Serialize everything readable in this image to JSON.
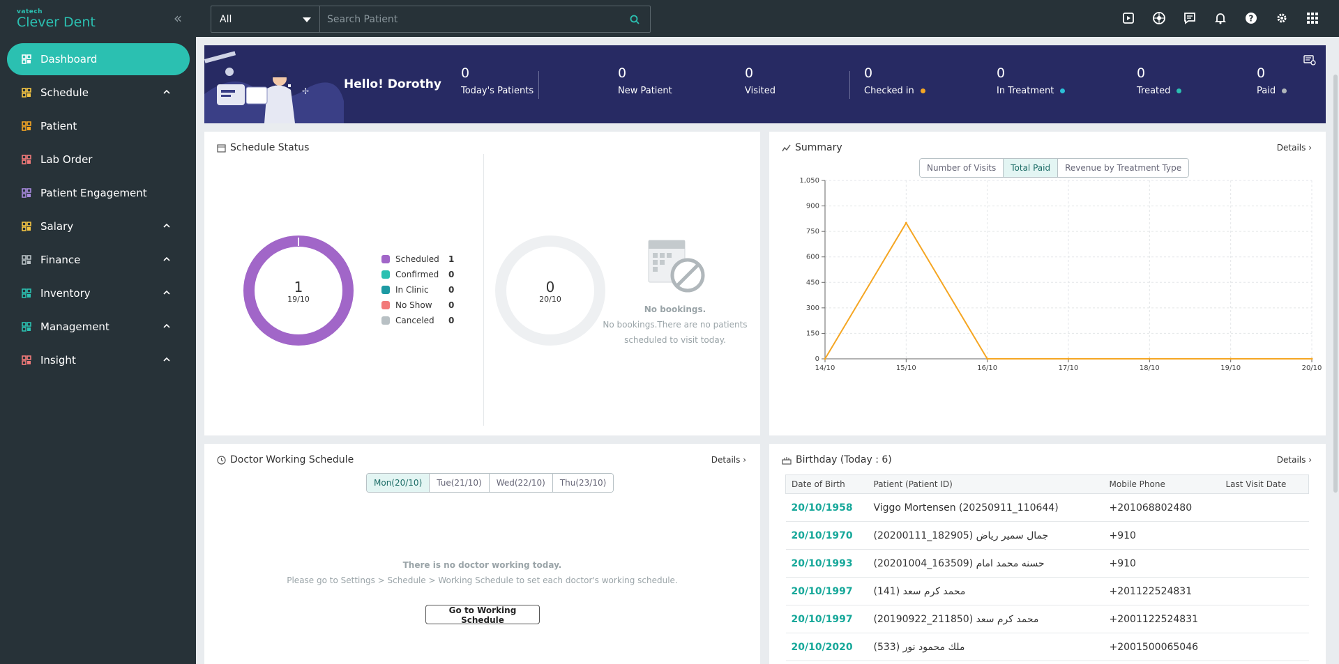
{
  "app": {
    "brand_small": "vatech",
    "brand": "Clever Dent"
  },
  "sidebar": {
    "items": [
      {
        "label": "Dashboard",
        "icon": "dashboard-icon",
        "active": true
      },
      {
        "label": "Schedule",
        "icon": "calendar-icon",
        "expandable": true
      },
      {
        "label": "Patient",
        "icon": "patients-icon"
      },
      {
        "label": "Lab Order",
        "icon": "tooth-icon"
      },
      {
        "label": "Patient Engagement",
        "icon": "engagement-icon"
      },
      {
        "label": "Salary",
        "icon": "wallet-icon",
        "expandable": true
      },
      {
        "label": "Finance",
        "icon": "finance-icon",
        "expandable": true
      },
      {
        "label": "Inventory",
        "icon": "inventory-icon",
        "expandable": true
      },
      {
        "label": "Management",
        "icon": "monitor-icon",
        "expandable": true
      },
      {
        "label": "Insight",
        "icon": "bar-chart-icon",
        "expandable": true
      }
    ]
  },
  "search": {
    "filter": "All",
    "placeholder": "Search Patient"
  },
  "banner": {
    "greeting": "Hello! Dorothy",
    "stats": [
      {
        "value": "0",
        "label": "Today's Patients"
      },
      {
        "value": "0",
        "label": "New Patient"
      },
      {
        "value": "0",
        "label": "Visited"
      },
      {
        "value": "0",
        "label": "Checked in",
        "dot": "#f5a623"
      },
      {
        "value": "0",
        "label": "In Treatment",
        "dot": "#2bc0d8"
      },
      {
        "value": "0",
        "label": "Treated",
        "dot": "#2bc0b1"
      },
      {
        "value": "0",
        "label": "Paid",
        "dot": "#b0b6ba"
      }
    ]
  },
  "schedule_status": {
    "title": "Schedule Status",
    "left": {
      "value": "1",
      "date": "19/10"
    },
    "right": {
      "value": "0",
      "date": "20/10"
    },
    "legend": [
      {
        "label": "Scheduled",
        "value": "1",
        "color": "#a166c8"
      },
      {
        "label": "Confirmed",
        "value": "0",
        "color": "#2bc0b1"
      },
      {
        "label": "In Clinic",
        "value": "0",
        "color": "#1d9aa3"
      },
      {
        "label": "No Show",
        "value": "0",
        "color": "#f27a7a"
      },
      {
        "label": "Canceled",
        "value": "0",
        "color": "#b8c0c4"
      }
    ],
    "empty_title": "No bookings.",
    "empty_text_1": "No bookings.There are no patients",
    "empty_text_2": "scheduled to visit today."
  },
  "summary": {
    "title": "Summary",
    "details": "Details",
    "tabs": [
      {
        "label": "Number of Visits",
        "active": false
      },
      {
        "label": "Total Paid",
        "active": true
      },
      {
        "label": "Revenue by Treatment Type",
        "active": false
      }
    ]
  },
  "chart_data": {
    "type": "line",
    "x": [
      "14/10",
      "15/10",
      "16/10",
      "17/10",
      "18/10",
      "19/10",
      "20/10"
    ],
    "series": [
      {
        "values": [
          0,
          800,
          0,
          0,
          0,
          0,
          0
        ],
        "color": "#f5a623"
      }
    ],
    "yticks": [
      "0",
      "150",
      "300",
      "450",
      "600",
      "750",
      "900",
      "1,050"
    ],
    "ylim": [
      0,
      1050
    ],
    "grid": true
  },
  "doctor_schedule": {
    "title": "Doctor Working Schedule",
    "details": "Details",
    "tabs": [
      {
        "label": "Mon(20/10)",
        "active": true
      },
      {
        "label": "Tue(21/10)",
        "active": false
      },
      {
        "label": "Wed(22/10)",
        "active": false
      },
      {
        "label": "Thu(23/10)",
        "active": false
      }
    ],
    "empty_title": "There is no doctor working today.",
    "empty_text": "Please go to Settings > Schedule > Working Schedule to set each doctor's working schedule.",
    "button": "Go to Working Schedule"
  },
  "birthday": {
    "title": "Birthday (Today : 6)",
    "details": "Details",
    "columns": [
      "Date of Birth",
      "Patient (Patient ID)",
      "Mobile Phone",
      "Last Visit Date"
    ],
    "rows": [
      {
        "dob": "20/10/1958",
        "patient": "Viggo Mortensen (20250911_110644)",
        "phone": "+201068802480",
        "last": ""
      },
      {
        "dob": "20/10/1970",
        "patient": "جمال سمير رياض (182905_20200111)",
        "phone": "+910",
        "last": ""
      },
      {
        "dob": "20/10/1993",
        "patient": "حسنه محمد امام (163509_20201004)",
        "phone": "+910",
        "last": ""
      },
      {
        "dob": "20/10/1997",
        "patient": "محمد كرم سعد (141)",
        "phone": "+201122524831",
        "last": ""
      },
      {
        "dob": "20/10/1997",
        "patient": "محمد كرم سعد (211850_20190922)",
        "phone": "+2001122524831",
        "last": ""
      },
      {
        "dob": "20/10/2020",
        "patient": "ملك محمود نور (533)",
        "phone": "+2001500065046",
        "last": ""
      }
    ]
  }
}
